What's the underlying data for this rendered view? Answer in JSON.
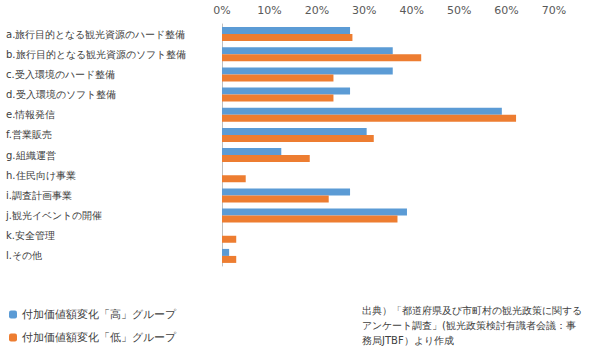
{
  "chart_data": {
    "type": "bar",
    "orientation": "horizontal",
    "categories": [
      "a.旅行目的となる観光資源のハード整備",
      "b.旅行目的となる観光資源のソフト整備",
      "c.受入環境のハード整備",
      "d.受入環境のソフト整備",
      "e.情報発信",
      "f.営業販売",
      "g.組織運営",
      "h.住民向け事業",
      "i.調査計画事業",
      "j.観光イベントの開催",
      "k.安全管理",
      "l.その他"
    ],
    "series": [
      {
        "name": "付加価値額変化「高」グループ",
        "color": "#5b9bd5",
        "values": [
          27,
          36,
          36,
          27,
          59,
          30.5,
          12.5,
          0,
          27,
          39,
          0,
          1.5
        ]
      },
      {
        "name": "付加価値額変化「低」グループ",
        "color": "#ed7d31",
        "values": [
          27.5,
          42,
          23.5,
          23.5,
          62,
          32,
          18.5,
          5,
          22.5,
          37,
          3,
          3
        ]
      }
    ],
    "xlim": [
      0,
      70
    ],
    "xticks": [
      {
        "value": 0,
        "label": "0%"
      },
      {
        "value": 10,
        "label": "10%"
      },
      {
        "value": 20,
        "label": "20%"
      },
      {
        "value": 30,
        "label": "30%"
      },
      {
        "value": 40,
        "label": "40%"
      },
      {
        "value": 50,
        "label": "50%"
      },
      {
        "value": 60,
        "label": "60%"
      },
      {
        "value": 70,
        "label": "70%"
      }
    ],
    "grid": false,
    "legend": "lower left",
    "annotations": [
      "出典）「都道府県及び市町村の観光政策に関するアンケート調査」(観光政策検討有識者会議：事務局JTBF）より作成"
    ]
  }
}
